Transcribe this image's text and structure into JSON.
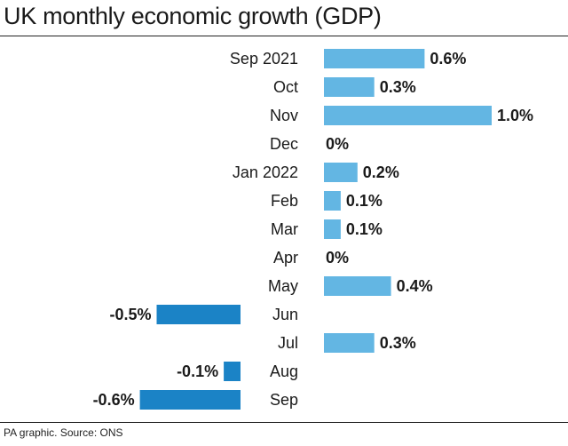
{
  "title": "UK monthly economic growth (GDP)",
  "source": "PA graphic. Source: ONS",
  "colors": {
    "positive": "#63b6e3",
    "negative": "#1b83c6",
    "text": "#1a1a1a"
  },
  "chart_data": {
    "type": "bar",
    "orientation": "horizontal",
    "title": "UK monthly economic growth (GDP)",
    "unit": "%",
    "categories": [
      "Sep 2021",
      "Oct",
      "Nov",
      "Dec",
      "Jan 2022",
      "Feb",
      "Mar",
      "Apr",
      "May",
      "Jun",
      "Jul",
      "Aug",
      "Sep"
    ],
    "values": [
      0.6,
      0.3,
      1.0,
      0,
      0.2,
      0.1,
      0.1,
      0,
      0.4,
      -0.5,
      0.3,
      -0.1,
      -0.6
    ],
    "value_labels": [
      "0.6%",
      "0.3%",
      "1.0%",
      "0%",
      "0.2%",
      "0.1%",
      "0.1%",
      "0%",
      "0.4%",
      "-0.5%",
      "0.3%",
      "-0.1%",
      "-0.6%"
    ],
    "grid": false,
    "legend": "none"
  }
}
